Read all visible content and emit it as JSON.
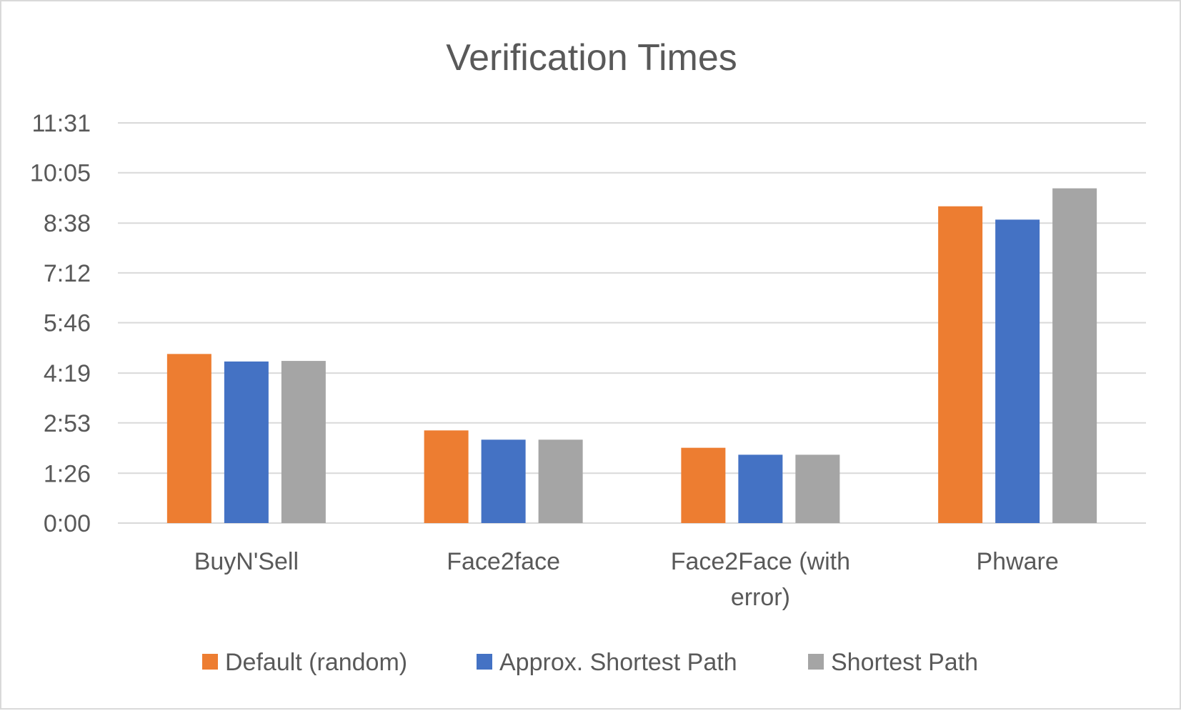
{
  "chart_data": {
    "type": "bar",
    "title": "Verification Times",
    "xlabel": "",
    "ylabel": "",
    "categories": [
      "BuyN'Sell",
      "Face2face",
      "Face2Face (with error)",
      "Phware"
    ],
    "category_lines": [
      [
        "BuyN'Sell"
      ],
      [
        "Face2face"
      ],
      [
        "Face2Face (with",
        "error)"
      ],
      [
        "Phware"
      ]
    ],
    "y_ticks_seconds": [
      0,
      86,
      173,
      259,
      346,
      432,
      518,
      605,
      691
    ],
    "y_tick_labels": [
      "0:00",
      "1:26",
      "2:53",
      "4:19",
      "5:46",
      "7:12",
      "8:38",
      "10:05",
      "11:31"
    ],
    "ylim_seconds": [
      0,
      691
    ],
    "grid": true,
    "legend_position": "bottom",
    "series": [
      {
        "name": "Default (random)",
        "color": "#ED7D31",
        "values_seconds": [
          292,
          160,
          130,
          547
        ]
      },
      {
        "name": "Approx. Shortest Path",
        "color": "#4472C4",
        "values_seconds": [
          279,
          144,
          118,
          524
        ]
      },
      {
        "name": "Shortest Path",
        "color": "#A5A5A5",
        "values_seconds": [
          280,
          144,
          118,
          578
        ]
      }
    ]
  }
}
